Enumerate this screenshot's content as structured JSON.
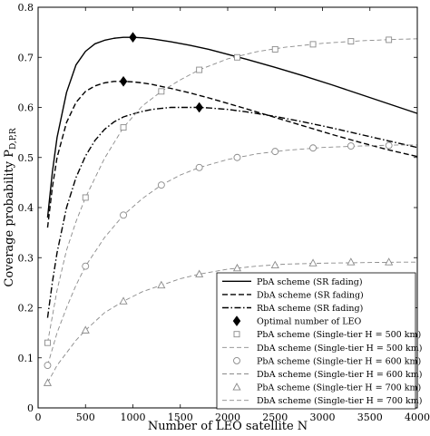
{
  "chart_data": {
    "type": "line",
    "xlabel": "Number of LEO satellite N",
    "ylabel": "Coverage probability P_{D,P,R}",
    "xlim": [
      0,
      4000
    ],
    "ylim": [
      0,
      0.8
    ],
    "xticks": [
      0,
      500,
      1000,
      1500,
      2000,
      2500,
      3000,
      3500,
      4000
    ],
    "yticks": [
      0,
      0.1,
      0.2,
      0.3,
      0.4,
      0.5,
      0.6,
      0.7,
      0.8
    ],
    "xtick_labels": [
      "0",
      "500",
      "1000",
      "1500",
      "2000",
      "2500",
      "3000",
      "3500",
      "4000"
    ],
    "ytick_labels": [
      "0",
      "0.1",
      "0.2",
      "0.3",
      "0.4",
      "0.5",
      "0.6",
      "0.7",
      "0.8"
    ],
    "grid": false,
    "legend_position": "bottom-right",
    "series": [
      {
        "name": "PbA scheme (SR fading)",
        "color": "#000000",
        "dash": "solid",
        "marker": "none",
        "x": [
          100,
          150,
          200,
          300,
          400,
          500,
          600,
          700,
          800,
          900,
          1000,
          1100,
          1200,
          1400,
          1600,
          1800,
          2000,
          2200,
          2500,
          2800,
          3100,
          3400,
          3700,
          4000
        ],
        "y": [
          0.38,
          0.47,
          0.54,
          0.63,
          0.685,
          0.712,
          0.727,
          0.734,
          0.738,
          0.74,
          0.74,
          0.739,
          0.737,
          0.731,
          0.724,
          0.716,
          0.706,
          0.696,
          0.68,
          0.663,
          0.645,
          0.626,
          0.607,
          0.588
        ]
      },
      {
        "name": "DbA scheme (SR fading)",
        "color": "#000000",
        "dash": "dashed",
        "marker": "none",
        "x": [
          100,
          150,
          200,
          300,
          400,
          500,
          600,
          700,
          800,
          900,
          1000,
          1100,
          1200,
          1400,
          1600,
          1800,
          2000,
          2200,
          2500,
          2800,
          3100,
          3400,
          3700,
          4000
        ],
        "y": [
          0.36,
          0.44,
          0.5,
          0.57,
          0.61,
          0.632,
          0.643,
          0.649,
          0.652,
          0.652,
          0.651,
          0.649,
          0.646,
          0.638,
          0.629,
          0.619,
          0.608,
          0.597,
          0.58,
          0.563,
          0.546,
          0.53,
          0.515,
          0.502
        ]
      },
      {
        "name": "RbA scheme (SR fading)",
        "color": "#000000",
        "dash": "dashdot",
        "marker": "none",
        "x": [
          100,
          150,
          200,
          300,
          400,
          500,
          600,
          700,
          800,
          900,
          1000,
          1100,
          1200,
          1300,
          1400,
          1500,
          1600,
          1700,
          1800,
          2000,
          2200,
          2500,
          2800,
          3100,
          3400,
          3700,
          4000
        ],
        "y": [
          0.18,
          0.25,
          0.31,
          0.4,
          0.46,
          0.503,
          0.534,
          0.556,
          0.571,
          0.581,
          0.587,
          0.592,
          0.596,
          0.598,
          0.6,
          0.6,
          0.6,
          0.6,
          0.599,
          0.596,
          0.591,
          0.582,
          0.571,
          0.559,
          0.546,
          0.533,
          0.52
        ]
      },
      {
        "name": "Optimal number of LEO",
        "color": "#000000",
        "dash": "none",
        "marker": "diamond",
        "x": [
          1000,
          900,
          1700
        ],
        "y": [
          0.74,
          0.652,
          0.6
        ]
      },
      {
        "name": "PbA scheme (Single-tier H = 500 km)",
        "color": "#8a8a8a",
        "dash": "none",
        "marker": "square",
        "x": [
          100,
          500,
          900,
          1300,
          1700,
          2100,
          2500,
          2900,
          3300,
          3700
        ],
        "y": [
          0.13,
          0.42,
          0.56,
          0.632,
          0.675,
          0.7,
          0.716,
          0.726,
          0.732,
          0.735
        ]
      },
      {
        "name": "DbA scheme (Single-tier H = 500 km)",
        "color": "#8a8a8a",
        "dash": "longdash",
        "marker": "none",
        "x": [
          100,
          200,
          300,
          400,
          500,
          700,
          900,
          1100,
          1300,
          1500,
          1700,
          2000,
          2300,
          2600,
          3000,
          3400,
          3800,
          4000
        ],
        "y": [
          0.13,
          0.235,
          0.315,
          0.372,
          0.42,
          0.498,
          0.56,
          0.603,
          0.632,
          0.655,
          0.675,
          0.697,
          0.711,
          0.72,
          0.728,
          0.733,
          0.736,
          0.737
        ]
      },
      {
        "name": "PbA scheme (Single-tier H = 600 km)",
        "color": "#8a8a8a",
        "dash": "none",
        "marker": "circle",
        "x": [
          100,
          500,
          900,
          1300,
          1700,
          2100,
          2500,
          2900,
          3300,
          3700
        ],
        "y": [
          0.085,
          0.283,
          0.385,
          0.445,
          0.48,
          0.5,
          0.512,
          0.519,
          0.523,
          0.524
        ]
      },
      {
        "name": "DbA scheme (Single-tier H = 600 km)",
        "color": "#8a8a8a",
        "dash": "longdash",
        "marker": "none",
        "x": [
          100,
          200,
          300,
          400,
          500,
          700,
          900,
          1100,
          1300,
          1500,
          1700,
          2000,
          2300,
          2600,
          3000,
          3400,
          3800,
          4000
        ],
        "y": [
          0.085,
          0.15,
          0.2,
          0.245,
          0.283,
          0.34,
          0.385,
          0.418,
          0.445,
          0.465,
          0.48,
          0.496,
          0.507,
          0.514,
          0.52,
          0.523,
          0.525,
          0.525
        ]
      },
      {
        "name": "PbA scheme (Single-tier H = 700 km)",
        "color": "#8a8a8a",
        "dash": "none",
        "marker": "triangle",
        "x": [
          100,
          500,
          900,
          1300,
          1700,
          2100,
          2500,
          2900,
          3300,
          3700
        ],
        "y": [
          0.05,
          0.155,
          0.213,
          0.245,
          0.267,
          0.279,
          0.285,
          0.289,
          0.291,
          0.291
        ]
      },
      {
        "name": "DbA scheme (Single-tier H = 700 km)",
        "color": "#8a8a8a",
        "dash": "longdash",
        "marker": "none",
        "x": [
          100,
          200,
          300,
          400,
          500,
          700,
          900,
          1100,
          1300,
          1500,
          1700,
          2000,
          2300,
          2600,
          3000,
          3400,
          3800,
          4000
        ],
        "y": [
          0.05,
          0.085,
          0.11,
          0.135,
          0.155,
          0.19,
          0.213,
          0.232,
          0.245,
          0.258,
          0.267,
          0.277,
          0.283,
          0.287,
          0.289,
          0.29,
          0.291,
          0.291
        ]
      }
    ]
  }
}
